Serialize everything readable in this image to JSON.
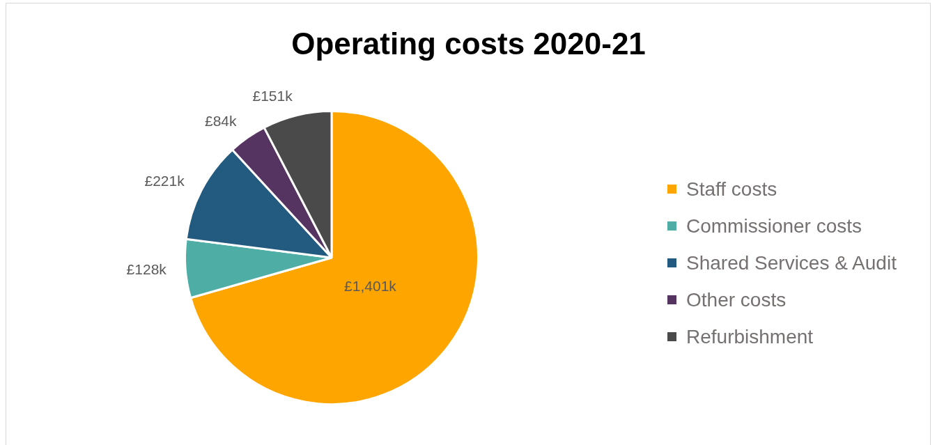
{
  "chart_data": {
    "type": "pie",
    "title": "Operating costs 2020-21",
    "categories": [
      "Staff costs",
      "Commissioner costs",
      "Shared Services & Audit",
      "Other costs",
      "Refurbishment"
    ],
    "values": [
      1401,
      128,
      221,
      84,
      151
    ],
    "value_labels": [
      "£1,401k",
      "£128k",
      "£221k",
      "£84k",
      "£151k"
    ],
    "colors": [
      "#ffa500",
      "#4eada5",
      "#235a80",
      "#553462",
      "#4a4a4a"
    ],
    "legend": "right"
  }
}
